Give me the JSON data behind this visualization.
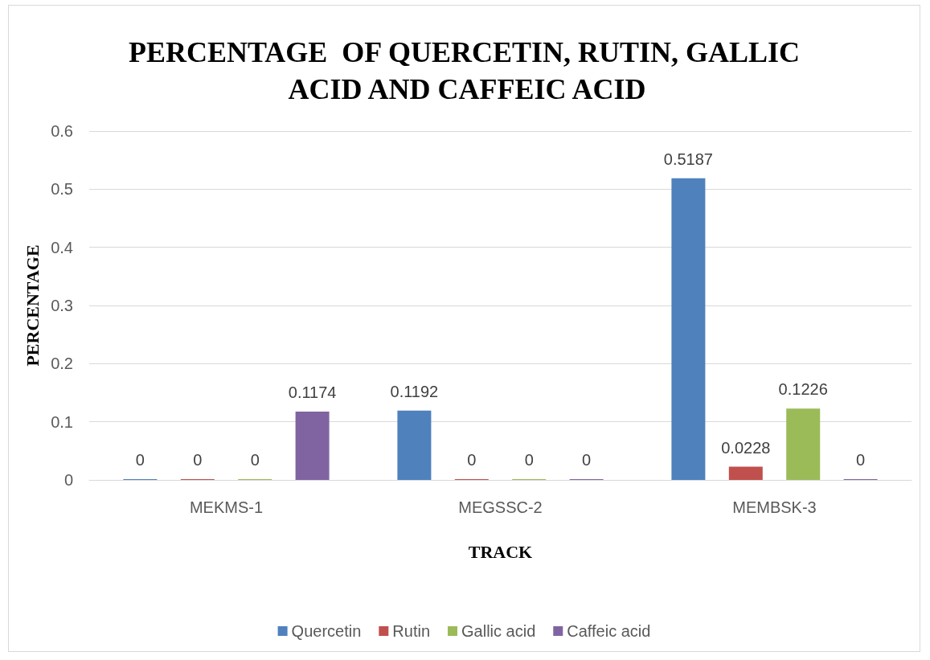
{
  "chart_data": {
    "type": "bar",
    "title": "PERCENTAGE  OF QUERCETIN, RUTIN, GALLIC ACID AND CAFFEIC ACID",
    "xlabel": "TRACK",
    "ylabel": "PERCENTAGE",
    "categories": [
      "MEKMS-1",
      "MEGSSC-2",
      "MEMBSK-3"
    ],
    "series": [
      {
        "name": "Quercetin",
        "color": "#4f81bd",
        "values": [
          0,
          0.1192,
          0.5187
        ]
      },
      {
        "name": "Rutin",
        "color": "#c0504d",
        "values": [
          0,
          0,
          0.0228
        ]
      },
      {
        "name": "Gallic acid",
        "color": "#9bbb59",
        "values": [
          0,
          0,
          0.1226
        ]
      },
      {
        "name": "Caffeic acid",
        "color": "#8064a2",
        "values": [
          0.1174,
          0,
          0
        ]
      }
    ],
    "ylim": [
      0,
      0.6
    ],
    "yticks": [
      0,
      0.1,
      0.2,
      0.3,
      0.4,
      0.5,
      0.6
    ],
    "grid": "y",
    "legend": "bottom",
    "data_labels": true
  }
}
